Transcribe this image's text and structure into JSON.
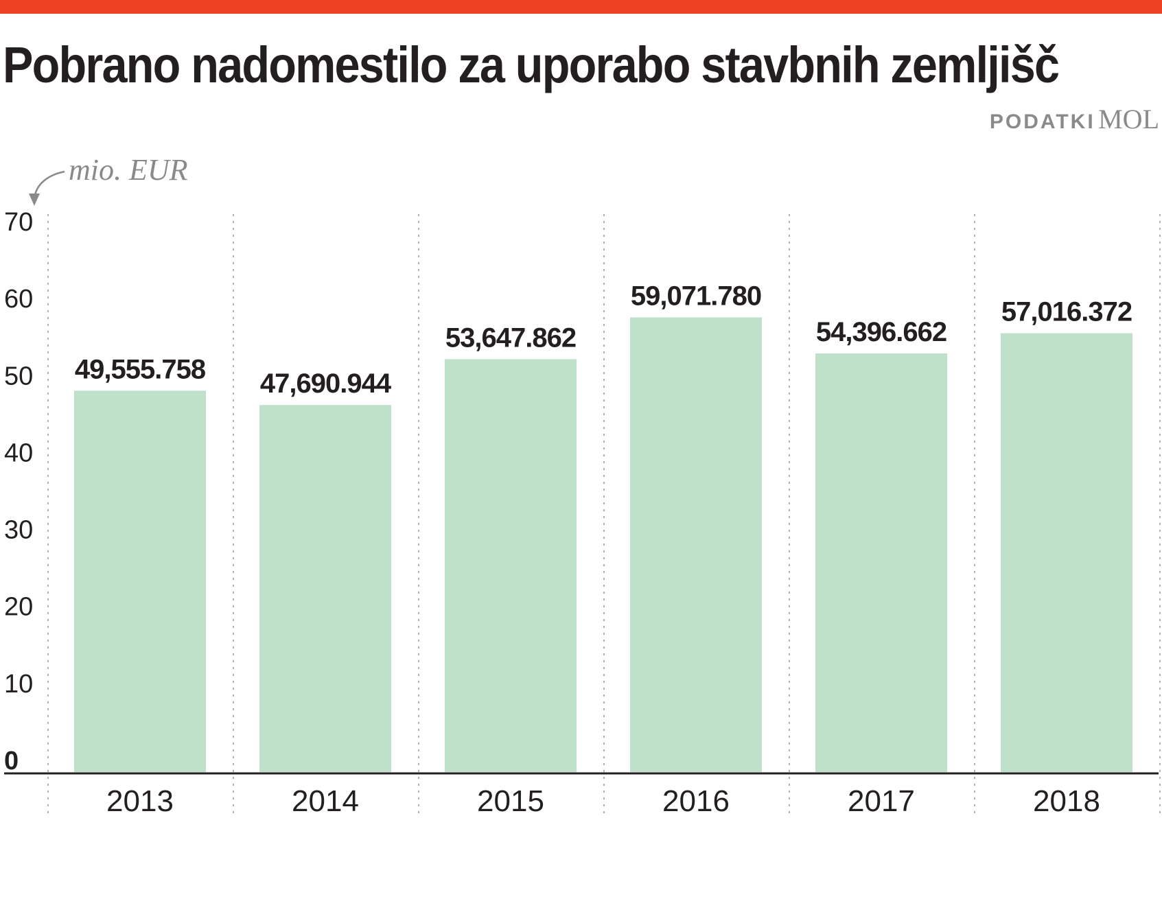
{
  "title": "Pobrano nadomestilo za uporabo stavbnih zemljišč",
  "source": {
    "prefix": "PODATKI",
    "name": "MOL"
  },
  "colors": {
    "accent": "#ee4023",
    "bar": "#bfe1ca",
    "text": "#231f20",
    "muted": "#8a8a8b"
  },
  "chart_data": {
    "type": "bar",
    "title": "Pobrano nadomestilo za uporabo stavbnih zemljišč",
    "ylabel": "mio. EUR",
    "xlabel": "",
    "categories": [
      "2013",
      "2014",
      "2015",
      "2016",
      "2017",
      "2018"
    ],
    "values": [
      49.555758,
      47.690944,
      53.647862,
      59.07178,
      54.396662,
      57.016372
    ],
    "value_labels": [
      "49,555.758",
      "47,690.944",
      "53,647.862",
      "59,071.780",
      "54,396.662",
      "57,016.372"
    ],
    "ylim": [
      0,
      70
    ],
    "yticks": [
      0,
      10,
      20,
      30,
      40,
      50,
      60,
      70
    ],
    "grid": "vertical dotted separators"
  }
}
